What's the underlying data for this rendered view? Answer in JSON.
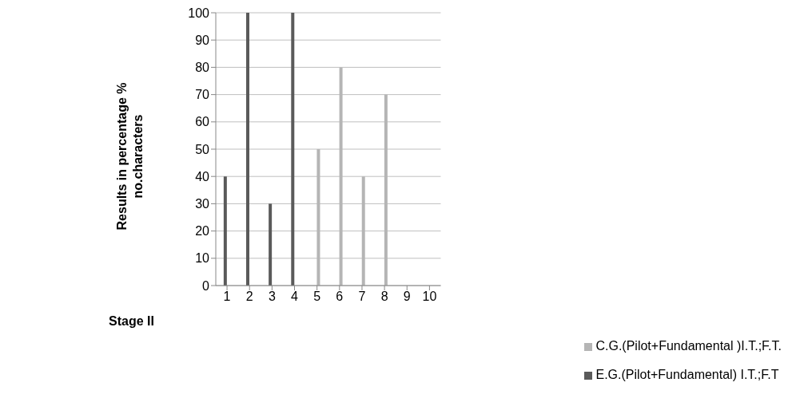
{
  "chart_data": {
    "type": "bar",
    "xlabel": "Stage II",
    "ylabel": "Results  in  percentage %\nno.characters",
    "categories": [
      "1",
      "2",
      "3",
      "4",
      "5",
      "6",
      "7",
      "8",
      "9",
      "10"
    ],
    "series": [
      {
        "name": "E.G.(Pilot+Fundamental) I.T.;F.T",
        "color": "#5a5a5a",
        "values": [
          40,
          100,
          30,
          100,
          null,
          null,
          null,
          null,
          null,
          null
        ]
      },
      {
        "name": "C.G.(Pilot+Fundamental )I.T.;F.T.",
        "color": "#b5b5b5",
        "values": [
          null,
          null,
          null,
          null,
          50,
          80,
          40,
          70,
          null,
          null
        ]
      }
    ],
    "ylim": [
      0,
      100
    ],
    "yticks": [
      0,
      10,
      20,
      30,
      40,
      50,
      60,
      70,
      80,
      90,
      100
    ],
    "grid": "y",
    "legend": "bottom right"
  }
}
